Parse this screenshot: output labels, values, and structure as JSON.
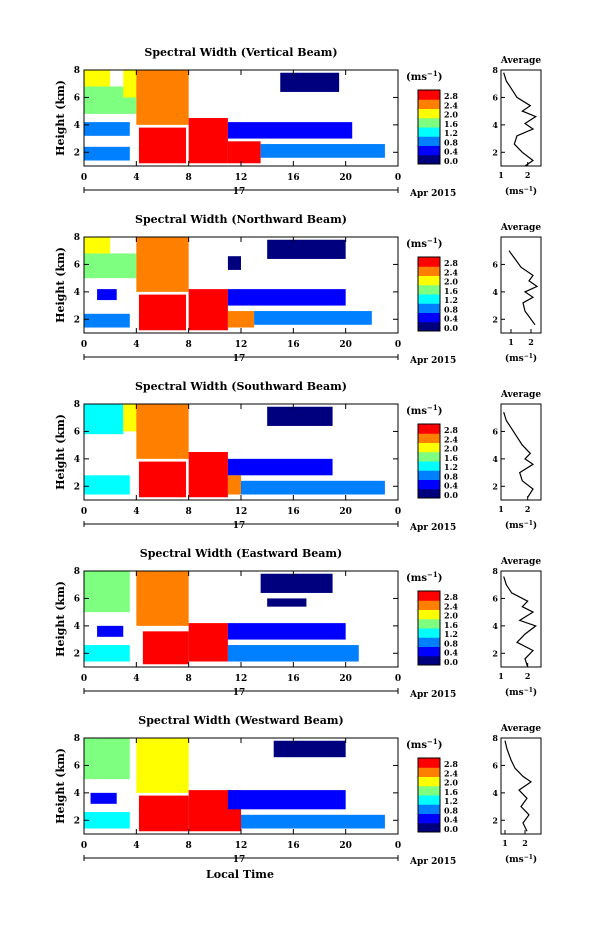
{
  "figure": {
    "xlabel": "Local Time",
    "date_label": "Apr 2015",
    "day_label": "17",
    "ylabel": "Height (km)",
    "colorbar_unit": "(ms",
    "unit_exp": "−1",
    "avg_title": "Average"
  },
  "chart_data": [
    {
      "type": "heatmap",
      "title": "Spectral Width (Vertical Beam)",
      "x_ticks": [
        "0",
        "4",
        "8",
        "12",
        "16",
        "20",
        "0"
      ],
      "y_ticks": [
        "2",
        "4",
        "6",
        "8"
      ],
      "colorbar_ticks": [
        "0.0",
        "0.4",
        "0.8",
        "1.2",
        "1.6",
        "2.0",
        "2.4",
        "2.8"
      ],
      "xlim": [
        0,
        24
      ],
      "ylim": [
        1,
        8
      ],
      "zlim": [
        0,
        3.0
      ],
      "colormap": [
        "#00007f",
        "#0000ff",
        "#007fff",
        "#00ffff",
        "#7fff7f",
        "#ffff00",
        "#ff7f00",
        "#ff0000"
      ],
      "regions": [
        {
          "x": [
            0,
            2
          ],
          "y": [
            6.8,
            8
          ],
          "v": 2.1
        },
        {
          "x": [
            0,
            4
          ],
          "y": [
            4.8,
            6.8
          ],
          "v": 1.7
        },
        {
          "x": [
            3,
            5
          ],
          "y": [
            6,
            8
          ],
          "v": 2.0
        },
        {
          "x": [
            4,
            8
          ],
          "y": [
            4,
            8
          ],
          "v": 2.5
        },
        {
          "x": [
            4.2,
            7.8
          ],
          "y": [
            1.2,
            3.8
          ],
          "v": 2.9
        },
        {
          "x": [
            8,
            11
          ],
          "y": [
            1.2,
            4.5
          ],
          "v": 2.8
        },
        {
          "x": [
            11,
            13.5
          ],
          "y": [
            1.2,
            2.8
          ],
          "v": 2.7
        },
        {
          "x": [
            0,
            3.5
          ],
          "y": [
            1.4,
            2.4
          ],
          "v": 1.0
        },
        {
          "x": [
            0,
            3.5
          ],
          "y": [
            3.2,
            4.2
          ],
          "v": 0.8
        },
        {
          "x": [
            13.5,
            23
          ],
          "y": [
            1.6,
            2.6
          ],
          "v": 0.9
        },
        {
          "x": [
            11,
            20.5
          ],
          "y": [
            3,
            4.2
          ],
          "v": 0.4
        },
        {
          "x": [
            15,
            19.5
          ],
          "y": [
            6.4,
            7.8
          ],
          "v": 0.3
        }
      ],
      "avg": {
        "xlim": [
          1,
          2.5
        ],
        "x_ticks": [
          "1",
          "2"
        ],
        "y_ticks": [
          "2",
          "4",
          "6",
          "8"
        ],
        "profile": [
          [
            1.9,
            1
          ],
          [
            2.2,
            1.4
          ],
          [
            1.8,
            2
          ],
          [
            1.5,
            2.6
          ],
          [
            1.6,
            3.2
          ],
          [
            2.2,
            3.7
          ],
          [
            1.9,
            4.1
          ],
          [
            2.3,
            4.6
          ],
          [
            1.8,
            5
          ],
          [
            2.1,
            5.4
          ],
          [
            1.6,
            6
          ],
          [
            1.4,
            6.6
          ],
          [
            1.2,
            7.2
          ],
          [
            1.1,
            7.8
          ]
        ]
      }
    },
    {
      "type": "heatmap",
      "title": "Spectral Width (Northward Beam)",
      "x_ticks": [
        "0",
        "4",
        "8",
        "12",
        "16",
        "20",
        "0"
      ],
      "y_ticks": [
        "2",
        "4",
        "6",
        "8"
      ],
      "colorbar_ticks": [
        "0.0",
        "0.4",
        "0.8",
        "1.2",
        "1.6",
        "2.0",
        "2.4",
        "2.8"
      ],
      "xlim": [
        0,
        24
      ],
      "ylim": [
        1,
        8
      ],
      "zlim": [
        0,
        3.0
      ],
      "colormap": [
        "#00007f",
        "#0000ff",
        "#007fff",
        "#00ffff",
        "#7fff7f",
        "#ffff00",
        "#ff7f00",
        "#ff0000"
      ],
      "regions": [
        {
          "x": [
            0,
            2
          ],
          "y": [
            6.8,
            8
          ],
          "v": 2.0
        },
        {
          "x": [
            0,
            4
          ],
          "y": [
            5,
            6.8
          ],
          "v": 1.6
        },
        {
          "x": [
            4,
            8
          ],
          "y": [
            4,
            8
          ],
          "v": 2.4
        },
        {
          "x": [
            4.2,
            7.8
          ],
          "y": [
            1.2,
            3.8
          ],
          "v": 2.9
        },
        {
          "x": [
            8,
            11
          ],
          "y": [
            1.2,
            4.2
          ],
          "v": 2.8
        },
        {
          "x": [
            11,
            13
          ],
          "y": [
            1.4,
            2.6
          ],
          "v": 2.6
        },
        {
          "x": [
            0,
            3.5
          ],
          "y": [
            1.4,
            2.4
          ],
          "v": 1.1
        },
        {
          "x": [
            1,
            2.5
          ],
          "y": [
            3.4,
            4.2
          ],
          "v": 0.5
        },
        {
          "x": [
            13,
            22
          ],
          "y": [
            1.6,
            2.6
          ],
          "v": 1.0
        },
        {
          "x": [
            11,
            20
          ],
          "y": [
            3,
            4.2
          ],
          "v": 0.4
        },
        {
          "x": [
            14,
            20
          ],
          "y": [
            6.4,
            7.8
          ],
          "v": 0.3
        },
        {
          "x": [
            11,
            12
          ],
          "y": [
            5.6,
            6.6
          ],
          "v": 0.3
        }
      ],
      "avg": {
        "xlim": [
          0.5,
          2.5
        ],
        "x_ticks": [
          "1",
          "2"
        ],
        "y_ticks": [
          "2",
          "4",
          "6"
        ],
        "profile": [
          [
            2.2,
            1.6
          ],
          [
            1.9,
            2.2
          ],
          [
            1.7,
            2.6
          ],
          [
            1.6,
            3.2
          ],
          [
            2.1,
            3.6
          ],
          [
            1.7,
            4
          ],
          [
            2.3,
            4.4
          ],
          [
            1.9,
            4.8
          ],
          [
            2.1,
            5.2
          ],
          [
            1.5,
            5.8
          ],
          [
            1.2,
            6.4
          ],
          [
            0.9,
            7
          ]
        ]
      }
    },
    {
      "type": "heatmap",
      "title": "Spectral Width (Southward Beam)",
      "x_ticks": [
        "0",
        "4",
        "8",
        "12",
        "16",
        "20",
        "0"
      ],
      "y_ticks": [
        "2",
        "4",
        "6",
        "8"
      ],
      "colorbar_ticks": [
        "0.0",
        "0.4",
        "0.8",
        "1.2",
        "1.6",
        "2.0",
        "2.4",
        "2.8"
      ],
      "xlim": [
        0,
        24
      ],
      "ylim": [
        1,
        8
      ],
      "zlim": [
        0,
        3.0
      ],
      "colormap": [
        "#00007f",
        "#0000ff",
        "#007fff",
        "#00ffff",
        "#7fff7f",
        "#ffff00",
        "#ff7f00",
        "#ff0000"
      ],
      "regions": [
        {
          "x": [
            0,
            3
          ],
          "y": [
            5.8,
            8
          ],
          "v": 1.2
        },
        {
          "x": [
            3,
            5
          ],
          "y": [
            6,
            8
          ],
          "v": 2.0
        },
        {
          "x": [
            4,
            8
          ],
          "y": [
            4,
            8
          ],
          "v": 2.4
        },
        {
          "x": [
            4.2,
            7.8
          ],
          "y": [
            1.2,
            3.8
          ],
          "v": 2.9
        },
        {
          "x": [
            8,
            11
          ],
          "y": [
            1.2,
            4.5
          ],
          "v": 2.8
        },
        {
          "x": [
            11,
            12
          ],
          "y": [
            1.4,
            2.8
          ],
          "v": 2.6
        },
        {
          "x": [
            0,
            3.5
          ],
          "y": [
            1.4,
            2.8
          ],
          "v": 1.4
        },
        {
          "x": [
            11,
            19
          ],
          "y": [
            2.8,
            4
          ],
          "v": 0.4
        },
        {
          "x": [
            12,
            23
          ],
          "y": [
            1.4,
            2.4
          ],
          "v": 0.9
        },
        {
          "x": [
            14,
            19
          ],
          "y": [
            6.4,
            7.8
          ],
          "v": 0.3
        }
      ],
      "avg": {
        "xlim": [
          1,
          2.5
        ],
        "x_ticks": [
          "1",
          "2"
        ],
        "y_ticks": [
          "2",
          "4",
          "6"
        ],
        "profile": [
          [
            2.0,
            1.2
          ],
          [
            2.2,
            1.8
          ],
          [
            1.8,
            2.4
          ],
          [
            1.7,
            3
          ],
          [
            2.2,
            3.6
          ],
          [
            1.9,
            4
          ],
          [
            2.1,
            4.4
          ],
          [
            1.8,
            5
          ],
          [
            1.6,
            5.6
          ],
          [
            1.4,
            6.2
          ],
          [
            1.2,
            6.8
          ],
          [
            1.1,
            7.4
          ]
        ]
      }
    },
    {
      "type": "heatmap",
      "title": "Spectral Width (Eastward Beam)",
      "x_ticks": [
        "0",
        "4",
        "8",
        "12",
        "16",
        "20",
        "0"
      ],
      "y_ticks": [
        "2",
        "4",
        "6",
        "8"
      ],
      "colorbar_ticks": [
        "0.0",
        "0.4",
        "0.8",
        "1.2",
        "1.6",
        "2.0",
        "2.4",
        "2.8"
      ],
      "xlim": [
        0,
        24
      ],
      "ylim": [
        1,
        8
      ],
      "zlim": [
        0,
        3.0
      ],
      "colormap": [
        "#00007f",
        "#0000ff",
        "#007fff",
        "#00ffff",
        "#7fff7f",
        "#ffff00",
        "#ff7f00",
        "#ff0000"
      ],
      "regions": [
        {
          "x": [
            0,
            3.5
          ],
          "y": [
            5,
            8
          ],
          "v": 1.8
        },
        {
          "x": [
            4,
            8
          ],
          "y": [
            4,
            8
          ],
          "v": 2.4
        },
        {
          "x": [
            4.5,
            8
          ],
          "y": [
            1.2,
            3.6
          ],
          "v": 2.9
        },
        {
          "x": [
            8,
            11
          ],
          "y": [
            1.4,
            4.2
          ],
          "v": 2.8
        },
        {
          "x": [
            0,
            3.5
          ],
          "y": [
            1.4,
            2.6
          ],
          "v": 1.3
        },
        {
          "x": [
            1,
            3
          ],
          "y": [
            3.2,
            4
          ],
          "v": 0.5
        },
        {
          "x": [
            11,
            20
          ],
          "y": [
            3,
            4.2
          ],
          "v": 0.4
        },
        {
          "x": [
            11,
            21
          ],
          "y": [
            1.4,
            2.6
          ],
          "v": 1.0
        },
        {
          "x": [
            13.5,
            19
          ],
          "y": [
            6.4,
            7.8
          ],
          "v": 0.3
        },
        {
          "x": [
            14,
            17
          ],
          "y": [
            5.4,
            6
          ],
          "v": 0.3
        }
      ],
      "avg": {
        "xlim": [
          1,
          2.5
        ],
        "x_ticks": [
          "1",
          "2"
        ],
        "y_ticks": [
          "2",
          "4",
          "6",
          "8"
        ],
        "profile": [
          [
            2.0,
            1
          ],
          [
            1.9,
            1.6
          ],
          [
            2.2,
            2.2
          ],
          [
            1.6,
            2.8
          ],
          [
            1.9,
            3.4
          ],
          [
            2.3,
            4
          ],
          [
            1.7,
            4.4
          ],
          [
            2.2,
            5
          ],
          [
            1.8,
            5.4
          ],
          [
            2.0,
            5.8
          ],
          [
            1.4,
            6.4
          ],
          [
            1.2,
            7
          ],
          [
            1.1,
            7.6
          ]
        ]
      }
    },
    {
      "type": "heatmap",
      "title": "Spectral Width (Westward Beam)",
      "x_ticks": [
        "0",
        "4",
        "8",
        "12",
        "16",
        "20",
        "0"
      ],
      "y_ticks": [
        "2",
        "4",
        "6",
        "8"
      ],
      "colorbar_ticks": [
        "0.0",
        "0.4",
        "0.8",
        "1.2",
        "1.6",
        "2.0",
        "2.4",
        "2.8"
      ],
      "xlim": [
        0,
        24
      ],
      "ylim": [
        1,
        8
      ],
      "zlim": [
        0,
        3.0
      ],
      "colormap": [
        "#00007f",
        "#0000ff",
        "#007fff",
        "#00ffff",
        "#7fff7f",
        "#ffff00",
        "#ff7f00",
        "#ff0000"
      ],
      "regions": [
        {
          "x": [
            0,
            3.5
          ],
          "y": [
            5,
            8
          ],
          "v": 1.6
        },
        {
          "x": [
            4,
            8
          ],
          "y": [
            4,
            8
          ],
          "v": 2.2
        },
        {
          "x": [
            4.2,
            8
          ],
          "y": [
            1.2,
            3.8
          ],
          "v": 2.9
        },
        {
          "x": [
            8,
            12
          ],
          "y": [
            1.2,
            4.2
          ],
          "v": 2.8
        },
        {
          "x": [
            0,
            3.5
          ],
          "y": [
            1.4,
            2.6
          ],
          "v": 1.2
        },
        {
          "x": [
            0.5,
            2.5
          ],
          "y": [
            3.2,
            4
          ],
          "v": 0.5
        },
        {
          "x": [
            11,
            20
          ],
          "y": [
            2.8,
            4.2
          ],
          "v": 0.4
        },
        {
          "x": [
            12,
            23
          ],
          "y": [
            1.4,
            2.4
          ],
          "v": 0.9
        },
        {
          "x": [
            14.5,
            20
          ],
          "y": [
            6.6,
            7.8
          ],
          "v": 0.3
        }
      ],
      "avg": {
        "xlim": [
          0.8,
          2.8
        ],
        "x_ticks": [
          "1",
          "2"
        ],
        "y_ticks": [
          "2",
          "4",
          "6",
          "8"
        ],
        "profile": [
          [
            2.1,
            1.2
          ],
          [
            1.9,
            1.8
          ],
          [
            2.2,
            2.4
          ],
          [
            1.8,
            3
          ],
          [
            2.1,
            3.6
          ],
          [
            1.7,
            4.2
          ],
          [
            2.3,
            4.8
          ],
          [
            1.9,
            5.2
          ],
          [
            1.5,
            5.8
          ],
          [
            1.3,
            6.4
          ],
          [
            1.1,
            7.2
          ],
          [
            1.0,
            7.8
          ]
        ]
      }
    }
  ]
}
